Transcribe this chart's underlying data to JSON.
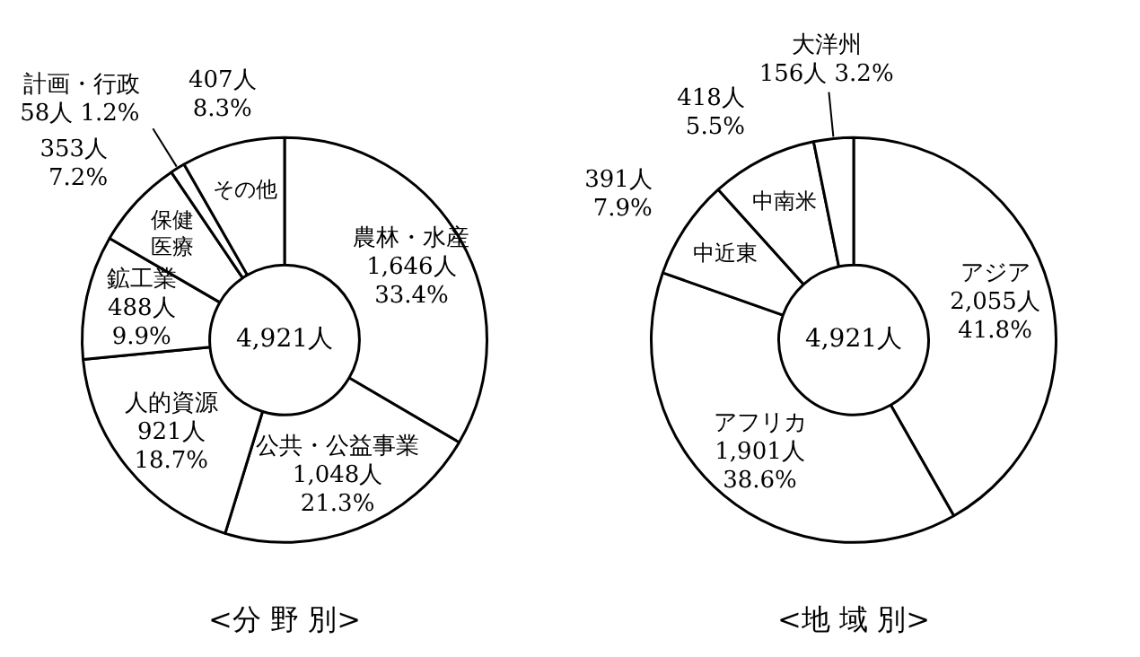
{
  "chart_data": [
    {
      "type": "donut",
      "title": "<分 野 別>",
      "categories": [
        "農林・水産",
        "公共・公益事業",
        "人的資源",
        "鉱工業",
        "保健医療",
        "計画・行政",
        "その他"
      ],
      "values": [
        1646,
        1048,
        921,
        488,
        353,
        58,
        407
      ],
      "value_labels": [
        "1,646人 33.4%",
        "1,048人 21.3%",
        "921人 18.7%",
        "488人 9.9%",
        "353人 7.2%",
        "58人 1.2%",
        "407人 8.3%"
      ],
      "colors": [
        "#ffffff",
        "#ffffff",
        "#ffffff",
        "#ffffff",
        "#ffffff",
        "#ffffff",
        "#ffffff"
      ],
      "annotations": [
        "4,921人"
      ],
      "legend": false
    },
    {
      "type": "donut",
      "title": "<地 域 別>",
      "categories": [
        "アジア",
        "アフリカ",
        "中近東",
        "中南米",
        "大洋州"
      ],
      "values": [
        2055,
        1901,
        391,
        418,
        156
      ],
      "value_labels": [
        "2,055人 41.8%",
        "1,901人 38.6%",
        "391人 7.9%",
        "418人 5.5%",
        "156人 3.2%"
      ],
      "colors": [
        "#ffffff",
        "#ffffff",
        "#ffffff",
        "#ffffff",
        "#ffffff"
      ],
      "annotations": [
        "4,921人"
      ],
      "legend": false
    }
  ]
}
